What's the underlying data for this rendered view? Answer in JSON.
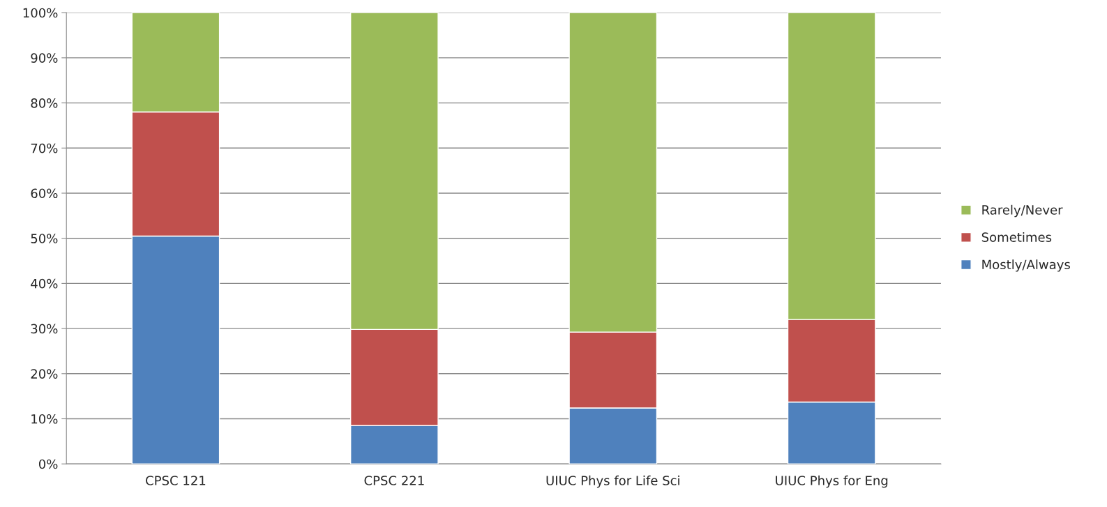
{
  "chart_data": {
    "type": "bar",
    "stacked": true,
    "categories": [
      "CPSC 121",
      "CPSC 221",
      "UIUC Phys for Life Sci",
      "UIUC Phys for Eng"
    ],
    "series": [
      {
        "name": "Mostly/Always",
        "color": "#4f81bd",
        "values": [
          50.5,
          8.5,
          12.4,
          13.7
        ]
      },
      {
        "name": "Sometimes",
        "color": "#c0504d",
        "values": [
          27.5,
          21.3,
          16.8,
          18.3
        ]
      },
      {
        "name": "Rarely/Never",
        "color": "#9bbb59",
        "values": [
          22.0,
          70.2,
          70.8,
          68.0
        ]
      }
    ],
    "ylim": [
      0,
      100
    ],
    "yticks": [
      {
        "value": 0,
        "label": "0%"
      },
      {
        "value": 10,
        "label": "10%"
      },
      {
        "value": 20,
        "label": "20%"
      },
      {
        "value": 30,
        "label": "30%"
      },
      {
        "value": 40,
        "label": "40%"
      },
      {
        "value": 50,
        "label": "50%"
      },
      {
        "value": 60,
        "label": "60%"
      },
      {
        "value": 70,
        "label": "70%"
      },
      {
        "value": 80,
        "label": "80%"
      },
      {
        "value": 90,
        "label": "90%"
      },
      {
        "value": 100,
        "label": "100%"
      }
    ],
    "grid": "y",
    "legend": "right"
  }
}
